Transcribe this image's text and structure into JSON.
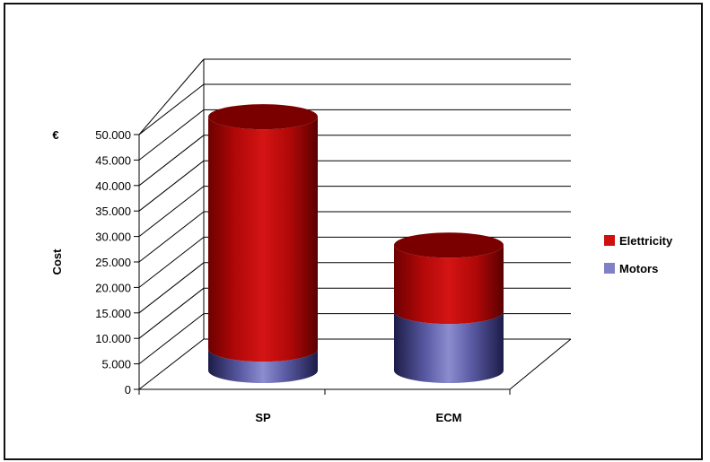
{
  "chart_data": {
    "type": "bar",
    "style": "3d-stacked-cylinder",
    "categories": [
      "SP",
      "ECM"
    ],
    "series": [
      {
        "name": "Motors",
        "values": [
          4200,
          11600
        ],
        "color": "#8080c8"
      },
      {
        "name": "Elettricity",
        "values": [
          45600,
          13000
        ],
        "color": "#d01010"
      }
    ],
    "ylabel": "Cost",
    "unit_label": "€",
    "ylim": [
      0,
      50000
    ],
    "yticks": [
      "0",
      "5.000",
      "10.000",
      "15.000",
      "20.000",
      "25.000",
      "30.000",
      "35.000",
      "40.000",
      "45.000",
      "50.000"
    ],
    "grid": true,
    "legend_position": "right"
  }
}
